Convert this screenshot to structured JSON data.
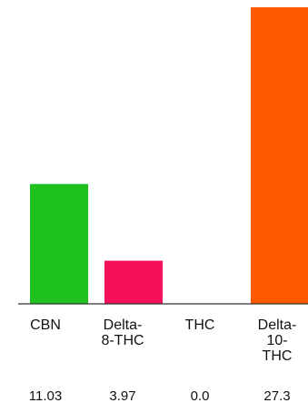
{
  "chart_data": {
    "type": "bar",
    "categories": [
      "CBN",
      "Delta-8-THC",
      "THC",
      "Delta-10-THC"
    ],
    "category_lines": [
      [
        "CBN"
      ],
      [
        "Delta-",
        "8-THC"
      ],
      [
        "THC"
      ],
      [
        "Delta-",
        "10-",
        "THC"
      ]
    ],
    "values": [
      11.03,
      3.97,
      0.0,
      27.3
    ],
    "value_labels": [
      "11.03",
      "3.97",
      "0.0",
      "27.3"
    ],
    "colors": [
      "#1ec11e",
      "#f5105a",
      "#ffffff",
      "#ff5a00"
    ],
    "ylim": [
      0,
      27.3
    ],
    "grid": false,
    "legend": "none"
  }
}
